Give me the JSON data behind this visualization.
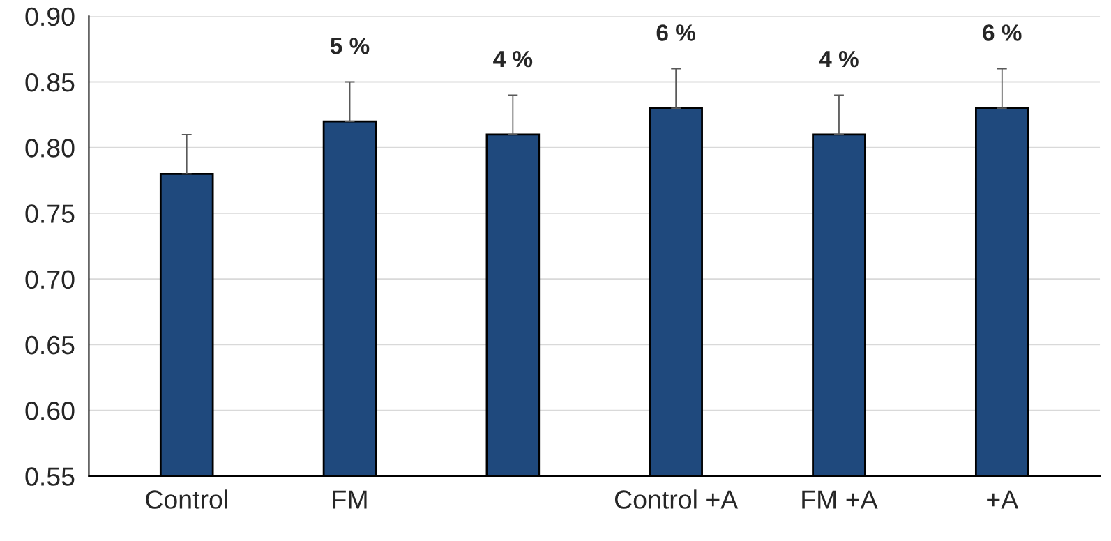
{
  "chart_data": {
    "type": "bar",
    "categories": [
      "Control",
      "FM",
      null,
      "Control +A",
      "FM +A",
      "+A"
    ],
    "values": [
      0.78,
      0.82,
      0.81,
      0.83,
      0.81,
      0.83
    ],
    "errors": [
      [
        0.78,
        0.81
      ],
      [
        0.82,
        0.85
      ],
      [
        0.81,
        0.84
      ],
      [
        0.83,
        0.86
      ],
      [
        0.81,
        0.84
      ],
      [
        0.83,
        0.86
      ]
    ],
    "annotations": [
      "5 %",
      "4 %",
      "6 %",
      "4 %",
      "6 %"
    ],
    "color": "#1f497d",
    "ylim": [
      0.55,
      0.9
    ],
    "yticks": [
      {
        "value": 0.55,
        "label": "0.55"
      },
      {
        "value": 0.6,
        "label": "0.60"
      },
      {
        "value": 0.65,
        "label": "0.65"
      },
      {
        "value": 0.7,
        "label": "0.70"
      },
      {
        "value": 0.75,
        "label": "0.75"
      },
      {
        "value": 0.8,
        "label": "0.80"
      },
      {
        "value": 0.85,
        "label": "0.85"
      },
      {
        "value": 0.9,
        "label": "0.90"
      }
    ],
    "grid": "y"
  }
}
